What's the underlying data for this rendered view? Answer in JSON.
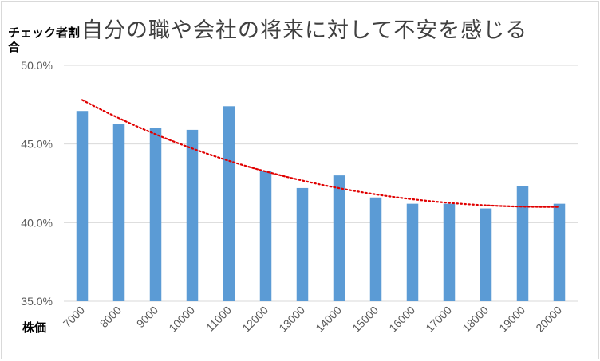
{
  "chart_data": {
    "type": "bar",
    "title": "自分の職や会社の将来に対して不安を感じる",
    "ylabel": "チェック者割合",
    "xlabel": "株価",
    "categories": [
      "7000",
      "8000",
      "9000",
      "10000",
      "11000",
      "12000",
      "13000",
      "14000",
      "15000",
      "16000",
      "17000",
      "18000",
      "19000",
      "20000"
    ],
    "values": [
      47.1,
      46.3,
      46.0,
      45.9,
      47.4,
      43.3,
      42.2,
      43.0,
      41.6,
      41.2,
      41.2,
      40.9,
      42.3,
      41.2
    ],
    "ylim": [
      35,
      50
    ],
    "yticks": [
      "35.0%",
      "40.0%",
      "45.0%",
      "50.0%"
    ],
    "grid": true,
    "legend": "none",
    "trendline": {
      "type": "polynomial",
      "style": "dotted",
      "color": "#e00000",
      "start": 47.8,
      "end": 41.0
    },
    "bar_color": "#5b9bd5"
  }
}
